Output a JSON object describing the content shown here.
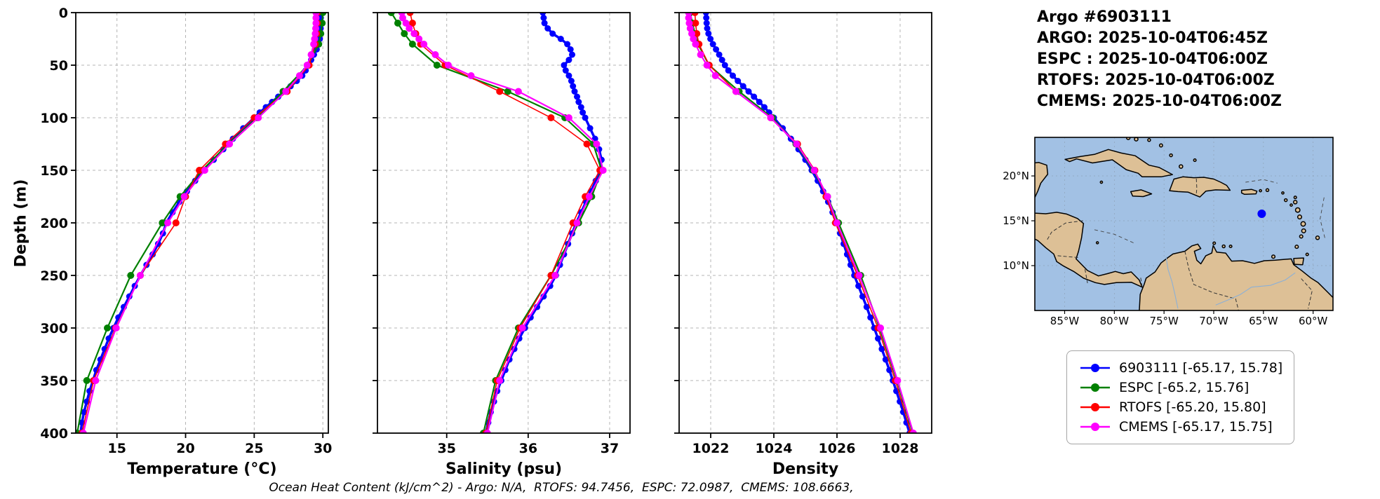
{
  "header": {
    "lines": [
      "Argo #6903111",
      "ARGO: 2025-10-04T06:45Z",
      "ESPC : 2025-10-04T06:00Z",
      "RTOFS: 2025-10-04T06:00Z",
      "CMEMS: 2025-10-04T06:00Z"
    ]
  },
  "footer": {
    "text": "Ocean Heat Content (kJ/cm^2) - Argo: N/A,  RTOFS: 94.7456,  ESPC: 72.0987,  CMEMS: 108.6663,"
  },
  "legend": {
    "items": [
      {
        "label": "6903111 [-65.17, 15.78]",
        "color": "#0000ff"
      },
      {
        "label": "ESPC [-65.2, 15.76]",
        "color": "#008000"
      },
      {
        "label": "RTOFS [-65.20, 15.80]",
        "color": "#ff0000"
      },
      {
        "label": "CMEMS [-65.17, 15.75]",
        "color": "#ff00ff"
      }
    ]
  },
  "map": {
    "extent": {
      "lon_min": -88,
      "lon_max": -58,
      "lat_min": 5,
      "lat_max": 24.3
    },
    "lon_ticks": [
      {
        "lon": -85,
        "label": "85°W"
      },
      {
        "lon": -80,
        "label": "80°W"
      },
      {
        "lon": -75,
        "label": "75°W"
      },
      {
        "lon": -70,
        "label": "70°W"
      },
      {
        "lon": -65,
        "label": "65°W"
      },
      {
        "lon": -60,
        "label": "60°W"
      }
    ],
    "lat_ticks": [
      {
        "lat": 20,
        "label": "20°N"
      },
      {
        "lat": 15,
        "label": "15°N"
      },
      {
        "lat": 10,
        "label": "10°N"
      }
    ],
    "marker": {
      "lon": -65.17,
      "lat": 15.78,
      "color": "#0000ff"
    },
    "ocean_color": "#a2c1e4",
    "land_color": "#ddc096"
  },
  "chart_data": [
    {
      "type": "line",
      "name": "temperature-profile",
      "xlabel": "Temperature (°C)",
      "ylabel": "Depth (m)",
      "xlim": [
        12,
        30.4
      ],
      "ylim": [
        0,
        400
      ],
      "xticks": [
        15,
        20,
        25,
        30
      ],
      "yticks": [
        0,
        50,
        100,
        150,
        200,
        250,
        300,
        350,
        400
      ],
      "show_depth_labels": true,
      "grid": true,
      "series": [
        {
          "name": "6903111",
          "color": "#0000ff",
          "line_width": 3.5,
          "marker_size": 4.5,
          "depth": [
            0,
            5,
            10,
            15,
            20,
            25,
            30,
            35,
            40,
            45,
            50,
            55,
            60,
            65,
            70,
            75,
            80,
            85,
            90,
            95,
            100,
            110,
            120,
            130,
            140,
            150,
            160,
            170,
            180,
            190,
            200,
            210,
            220,
            230,
            240,
            250,
            260,
            270,
            280,
            290,
            300,
            310,
            320,
            330,
            340,
            350,
            360,
            370,
            380,
            390,
            400
          ],
          "values": [
            29.85,
            29.85,
            29.85,
            29.84,
            29.82,
            29.78,
            29.7,
            29.55,
            29.35,
            29.15,
            28.95,
            28.75,
            28.5,
            28.1,
            27.65,
            27.2,
            26.75,
            26.3,
            25.85,
            25.4,
            25.0,
            24.2,
            23.45,
            22.75,
            22.05,
            21.35,
            20.7,
            20.1,
            19.55,
            19.05,
            18.6,
            18.35,
            18.0,
            17.6,
            17.15,
            16.7,
            16.3,
            15.9,
            15.5,
            15.1,
            14.75,
            14.4,
            14.1,
            13.8,
            13.5,
            13.25,
            13.0,
            12.8,
            12.6,
            12.45,
            12.35
          ]
        },
        {
          "name": "ESPC",
          "color": "#008000",
          "line_width": 2.2,
          "marker_size": 5,
          "depth": [
            0,
            10,
            20,
            30,
            50,
            75,
            100,
            125,
            150,
            175,
            200,
            250,
            300,
            350,
            400
          ],
          "values": [
            30.0,
            29.95,
            29.85,
            29.7,
            28.9,
            27.1,
            25.2,
            23.1,
            21.2,
            19.6,
            18.3,
            16.0,
            14.3,
            12.8,
            12.1
          ]
        },
        {
          "name": "RTOFS",
          "color": "#ff0000",
          "line_width": 1.6,
          "marker_size": 5,
          "depth": [
            0,
            10,
            20,
            30,
            50,
            75,
            100,
            125,
            150,
            175,
            200,
            250,
            300,
            350,
            400
          ],
          "values": [
            29.6,
            29.6,
            29.55,
            29.45,
            29.0,
            27.4,
            25.0,
            22.9,
            21.0,
            20.0,
            19.3,
            16.7,
            14.9,
            13.3,
            12.45
          ]
        },
        {
          "name": "CMEMS",
          "color": "#ff00ff",
          "line_width": 2.2,
          "marker_size": 5,
          "depth": [
            0,
            5,
            10,
            15,
            20,
            25,
            30,
            40,
            50,
            60,
            75,
            100,
            125,
            150,
            175,
            200,
            250,
            300,
            350,
            400
          ],
          "values": [
            29.5,
            29.5,
            29.5,
            29.48,
            29.45,
            29.4,
            29.33,
            29.15,
            28.85,
            28.3,
            27.3,
            25.3,
            23.2,
            21.4,
            19.9,
            18.7,
            16.7,
            14.95,
            13.45,
            12.55
          ]
        }
      ]
    },
    {
      "type": "line",
      "name": "salinity-profile",
      "xlabel": "Salinity (psu)",
      "ylabel": "Depth (m)",
      "xlim": [
        34.15,
        37.25
      ],
      "ylim": [
        0,
        400
      ],
      "xticks": [
        35,
        36,
        37
      ],
      "yticks": [
        0,
        50,
        100,
        150,
        200,
        250,
        300,
        350,
        400
      ],
      "show_depth_labels": false,
      "grid": true,
      "series": [
        {
          "name": "6903111",
          "color": "#0000ff",
          "line_width": 3.5,
          "marker_size": 4.5,
          "depth": [
            0,
            5,
            10,
            15,
            20,
            25,
            30,
            35,
            40,
            45,
            50,
            55,
            60,
            65,
            70,
            75,
            80,
            85,
            90,
            95,
            100,
            110,
            120,
            130,
            140,
            150,
            160,
            170,
            180,
            190,
            200,
            210,
            220,
            230,
            240,
            250,
            260,
            270,
            280,
            290,
            300,
            310,
            320,
            330,
            340,
            350,
            360,
            370,
            380,
            390,
            400
          ],
          "values": [
            36.18,
            36.19,
            36.2,
            36.24,
            36.3,
            36.4,
            36.48,
            36.52,
            36.54,
            36.5,
            36.44,
            36.46,
            36.5,
            36.53,
            36.55,
            36.57,
            36.6,
            36.62,
            36.65,
            36.67,
            36.7,
            36.76,
            36.82,
            36.87,
            36.9,
            36.88,
            36.83,
            36.77,
            36.71,
            36.65,
            36.59,
            36.54,
            36.49,
            36.44,
            36.39,
            36.34,
            36.27,
            36.19,
            36.11,
            36.03,
            35.96,
            35.89,
            35.83,
            35.77,
            35.72,
            35.67,
            35.62,
            35.58,
            35.54,
            35.51,
            35.48
          ]
        },
        {
          "name": "ESPC",
          "color": "#008000",
          "line_width": 2.2,
          "marker_size": 5,
          "depth": [
            0,
            10,
            20,
            30,
            50,
            75,
            100,
            125,
            150,
            175,
            200,
            250,
            300,
            350,
            400
          ],
          "values": [
            34.32,
            34.4,
            34.48,
            34.58,
            34.88,
            35.75,
            36.45,
            36.8,
            36.9,
            36.78,
            36.62,
            36.28,
            35.88,
            35.6,
            35.45
          ]
        },
        {
          "name": "RTOFS",
          "color": "#ff0000",
          "line_width": 1.6,
          "marker_size": 5,
          "depth": [
            0,
            10,
            20,
            30,
            50,
            75,
            100,
            125,
            150,
            175,
            200,
            250,
            300,
            350,
            400
          ],
          "values": [
            34.55,
            34.58,
            34.62,
            34.68,
            34.98,
            35.65,
            36.28,
            36.72,
            36.88,
            36.7,
            36.55,
            36.28,
            35.9,
            35.62,
            35.48
          ]
        },
        {
          "name": "CMEMS",
          "color": "#ff00ff",
          "line_width": 2.2,
          "marker_size": 5,
          "depth": [
            0,
            5,
            10,
            15,
            20,
            25,
            30,
            40,
            50,
            60,
            75,
            100,
            125,
            150,
            175,
            200,
            250,
            300,
            350,
            400
          ],
          "values": [
            34.45,
            34.46,
            34.5,
            34.54,
            34.6,
            34.66,
            34.72,
            34.86,
            35.02,
            35.3,
            35.88,
            36.5,
            36.84,
            36.92,
            36.75,
            36.6,
            36.33,
            35.93,
            35.65,
            35.5
          ]
        }
      ]
    },
    {
      "type": "line",
      "name": "density-profile",
      "xlabel": "Density",
      "ylabel": "Depth (m)",
      "xlim": [
        1021,
        1029
      ],
      "ylim": [
        0,
        400
      ],
      "xticks": [
        1022,
        1024,
        1026,
        1028
      ],
      "yticks": [
        0,
        50,
        100,
        150,
        200,
        250,
        300,
        350,
        400
      ],
      "show_depth_labels": false,
      "grid": true,
      "series": [
        {
          "name": "6903111",
          "color": "#0000ff",
          "line_width": 3.5,
          "marker_size": 4.5,
          "depth": [
            0,
            5,
            10,
            15,
            20,
            25,
            30,
            35,
            40,
            45,
            50,
            55,
            60,
            65,
            70,
            75,
            80,
            85,
            90,
            95,
            100,
            110,
            120,
            130,
            140,
            150,
            160,
            170,
            180,
            190,
            200,
            210,
            220,
            230,
            240,
            250,
            260,
            270,
            280,
            290,
            300,
            310,
            320,
            330,
            340,
            350,
            360,
            370,
            380,
            390,
            400
          ],
          "values": [
            1021.85,
            1021.86,
            1021.87,
            1021.89,
            1021.93,
            1021.99,
            1022.07,
            1022.17,
            1022.27,
            1022.36,
            1022.45,
            1022.56,
            1022.7,
            1022.86,
            1023.03,
            1023.2,
            1023.37,
            1023.54,
            1023.7,
            1023.85,
            1024.0,
            1024.28,
            1024.54,
            1024.78,
            1025.0,
            1025.2,
            1025.39,
            1025.56,
            1025.72,
            1025.86,
            1025.99,
            1026.1,
            1026.21,
            1026.32,
            1026.43,
            1026.55,
            1026.68,
            1026.81,
            1026.94,
            1027.06,
            1027.18,
            1027.3,
            1027.42,
            1027.54,
            1027.66,
            1027.77,
            1027.88,
            1027.99,
            1028.1,
            1028.2,
            1028.3
          ]
        },
        {
          "name": "ESPC",
          "color": "#008000",
          "line_width": 2.2,
          "marker_size": 5,
          "depth": [
            0,
            10,
            20,
            30,
            50,
            75,
            100,
            125,
            150,
            175,
            200,
            250,
            300,
            350,
            400
          ],
          "values": [
            1021.35,
            1021.42,
            1021.5,
            1021.6,
            1021.95,
            1022.9,
            1023.95,
            1024.7,
            1025.25,
            1025.7,
            1026.05,
            1026.75,
            1027.35,
            1027.9,
            1028.4
          ]
        },
        {
          "name": "RTOFS",
          "color": "#ff0000",
          "line_width": 1.6,
          "marker_size": 5,
          "depth": [
            0,
            10,
            20,
            30,
            50,
            75,
            100,
            125,
            150,
            175,
            200,
            250,
            300,
            350,
            400
          ],
          "values": [
            1021.5,
            1021.52,
            1021.56,
            1021.63,
            1021.95,
            1022.8,
            1023.9,
            1024.75,
            1025.3,
            1025.65,
            1025.95,
            1026.65,
            1027.3,
            1027.85,
            1028.35
          ]
        },
        {
          "name": "CMEMS",
          "color": "#ff00ff",
          "line_width": 2.2,
          "marker_size": 5,
          "depth": [
            0,
            5,
            10,
            15,
            20,
            25,
            30,
            40,
            50,
            60,
            75,
            100,
            125,
            150,
            175,
            200,
            250,
            300,
            350,
            400
          ],
          "values": [
            1021.3,
            1021.3,
            1021.32,
            1021.35,
            1021.4,
            1021.45,
            1021.52,
            1021.68,
            1021.88,
            1022.15,
            1022.8,
            1023.9,
            1024.72,
            1025.28,
            1025.7,
            1026.0,
            1026.7,
            1027.38,
            1027.92,
            1028.42
          ]
        }
      ]
    }
  ]
}
